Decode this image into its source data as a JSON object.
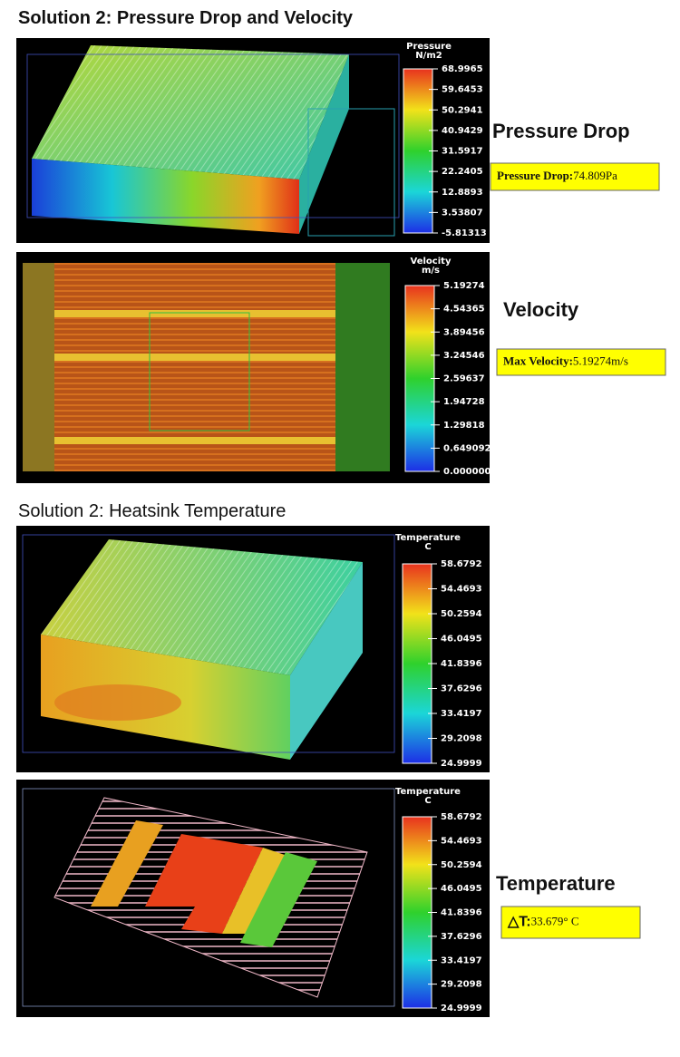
{
  "sections": [
    {
      "title": "Solution 2: Pressure Drop and Velocity",
      "panels": [
        {
          "legend": {
            "title": "Pressure",
            "unit": "N/m2",
            "ticks": [
              "68.9965",
              "59.6453",
              "50.2941",
              "40.9429",
              "31.5917",
              "22.2405",
              "12.8893",
              "3.53807",
              "-5.81313"
            ]
          },
          "label": "Pressure Drop",
          "result": {
            "name": "Pressure Drop:",
            "value": "74.809Pa"
          }
        },
        {
          "legend": {
            "title": "Velocity",
            "unit": "m/s",
            "ticks": [
              "5.19274",
              "4.54365",
              "3.89456",
              "3.24546",
              "2.59637",
              "1.94728",
              "1.29818",
              "0.649092",
              "0.000000"
            ]
          },
          "label": "Velocity",
          "result": {
            "name": "Max Velocity:",
            "value": "5.19274m/s"
          }
        }
      ]
    },
    {
      "title": "Solution 2: Heatsink Temperature",
      "panels": [
        {
          "legend": {
            "title": "Temperature",
            "unit": "C",
            "ticks": [
              "58.6792",
              "54.4693",
              "50.2594",
              "46.0495",
              "41.8396",
              "37.6296",
              "33.4197",
              "29.2098",
              "24.9999"
            ]
          }
        },
        {
          "legend": {
            "title": "Temperature",
            "unit": "C",
            "ticks": [
              "58.6792",
              "54.4693",
              "50.2594",
              "46.0495",
              "41.8396",
              "37.6296",
              "33.4197",
              "29.2098",
              "24.9999"
            ]
          },
          "label": "Temperature",
          "result": {
            "name": "△T:",
            "value": "33.679° C"
          }
        }
      ]
    }
  ]
}
